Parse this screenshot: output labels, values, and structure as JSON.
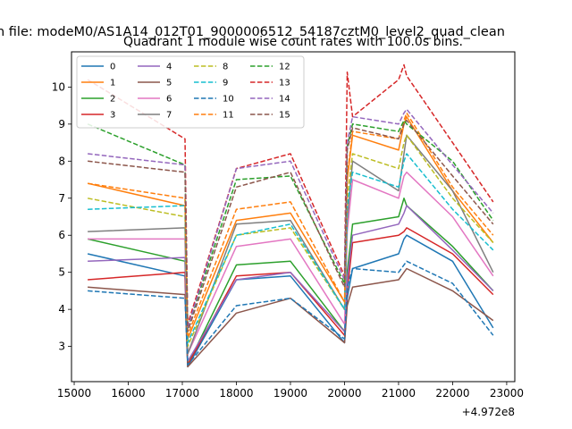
{
  "figure": {
    "suptitle": "n file: modeM0/AS1A14_012T01_9000006512_54187cztM0_level2_quad_clean",
    "title": "Quadrant 1 module wise count rates with 100.0s bins.",
    "offset_label": "+4.972e8"
  },
  "chart_data": {
    "type": "line",
    "title": "Quadrant 1 module wise count rates with 100.0s bins.",
    "xlabel": "",
    "ylabel": "",
    "x_offset": 497200000,
    "xlim": [
      14950,
      23150
    ],
    "ylim": [
      2.05,
      10.95
    ],
    "xticks": [
      15000,
      16000,
      17000,
      18000,
      19000,
      20000,
      21000,
      22000,
      23000
    ],
    "yticks": [
      3,
      4,
      5,
      6,
      7,
      8,
      9,
      10
    ],
    "grid": false,
    "legend_position": "top-left",
    "legend_columns": 4,
    "x": [
      15250,
      17050,
      17100,
      18000,
      19000,
      20000,
      20050,
      20150,
      21000,
      21100,
      21150,
      22000,
      22750
    ],
    "series": [
      {
        "name": "0",
        "color": "#1f77b4",
        "dash": "solid",
        "values": [
          5.5,
          4.9,
          2.45,
          4.8,
          4.9,
          3.1,
          4.3,
          5.1,
          5.5,
          5.9,
          6.0,
          5.3,
          3.5
        ]
      },
      {
        "name": "1",
        "color": "#ff7f0e",
        "dash": "solid",
        "values": [
          7.4,
          6.8,
          3.2,
          6.4,
          6.6,
          4.2,
          7.5,
          8.7,
          8.3,
          9.0,
          9.2,
          7.2,
          5.8
        ]
      },
      {
        "name": "2",
        "color": "#2ca02c",
        "dash": "solid",
        "values": [
          5.9,
          5.3,
          2.5,
          5.2,
          5.3,
          3.4,
          5.0,
          6.3,
          6.5,
          7.0,
          6.8,
          5.7,
          4.5
        ]
      },
      {
        "name": "3",
        "color": "#d62728",
        "dash": "solid",
        "values": [
          4.8,
          5.0,
          2.5,
          4.9,
          5.0,
          3.3,
          4.5,
          5.8,
          6.0,
          6.1,
          6.2,
          5.5,
          4.4
        ]
      },
      {
        "name": "4",
        "color": "#9467bd",
        "dash": "solid",
        "values": [
          5.3,
          5.4,
          2.6,
          4.8,
          5.0,
          3.4,
          4.8,
          6.0,
          6.3,
          6.6,
          6.8,
          5.6,
          4.5
        ]
      },
      {
        "name": "5",
        "color": "#8c564b",
        "dash": "solid",
        "values": [
          4.6,
          4.4,
          2.45,
          3.9,
          4.3,
          3.1,
          4.1,
          4.6,
          4.8,
          5.0,
          5.1,
          4.5,
          3.7
        ]
      },
      {
        "name": "6",
        "color": "#e377c2",
        "dash": "solid",
        "values": [
          5.9,
          5.9,
          2.8,
          5.7,
          5.9,
          3.6,
          6.1,
          7.5,
          7.0,
          7.6,
          7.7,
          6.5,
          4.9
        ]
      },
      {
        "name": "7",
        "color": "#7f7f7f",
        "dash": "solid",
        "values": [
          6.1,
          6.2,
          2.8,
          6.3,
          6.4,
          4.0,
          6.4,
          8.0,
          7.2,
          8.2,
          8.7,
          7.2,
          5.0
        ]
      },
      {
        "name": "8",
        "color": "#bcbd22",
        "dash": "dashed",
        "values": [
          7.0,
          6.5,
          3.0,
          6.0,
          6.2,
          4.0,
          7.0,
          8.2,
          7.8,
          8.5,
          8.7,
          7.0,
          5.8
        ]
      },
      {
        "name": "9",
        "color": "#17becf",
        "dash": "dashed",
        "values": [
          6.7,
          6.8,
          3.1,
          6.0,
          6.3,
          4.0,
          6.8,
          7.7,
          7.3,
          8.0,
          8.2,
          6.7,
          5.6
        ]
      },
      {
        "name": "10",
        "color": "#1f77b4",
        "dash": "dashed",
        "values": [
          4.5,
          4.3,
          2.5,
          4.1,
          4.3,
          3.2,
          4.6,
          5.1,
          5.0,
          5.2,
          5.3,
          4.7,
          3.3
        ]
      },
      {
        "name": "11",
        "color": "#ff7f0e",
        "dash": "dashed",
        "values": [
          7.4,
          7.0,
          3.3,
          6.7,
          6.9,
          4.2,
          7.6,
          8.8,
          8.6,
          9.1,
          9.3,
          7.3,
          6.0
        ]
      },
      {
        "name": "12",
        "color": "#2ca02c",
        "dash": "dashed",
        "values": [
          9.0,
          7.9,
          3.5,
          7.5,
          7.6,
          4.7,
          8.4,
          9.0,
          8.8,
          9.1,
          9.0,
          8.0,
          6.4
        ]
      },
      {
        "name": "13",
        "color": "#d62728",
        "dash": "dashed",
        "values": [
          10.2,
          8.6,
          3.6,
          7.8,
          8.2,
          4.9,
          10.4,
          9.2,
          10.2,
          10.6,
          10.3,
          8.5,
          6.9
        ]
      },
      {
        "name": "14",
        "color": "#9467bd",
        "dash": "dashed",
        "values": [
          8.2,
          7.9,
          3.5,
          7.8,
          8.0,
          4.8,
          8.5,
          9.2,
          9.0,
          9.3,
          9.4,
          7.9,
          6.6
        ]
      },
      {
        "name": "15",
        "color": "#8c564b",
        "dash": "dashed",
        "values": [
          8.0,
          7.7,
          3.4,
          7.3,
          7.7,
          4.6,
          8.3,
          8.9,
          8.6,
          9.0,
          9.1,
          7.6,
          6.3
        ]
      }
    ]
  }
}
